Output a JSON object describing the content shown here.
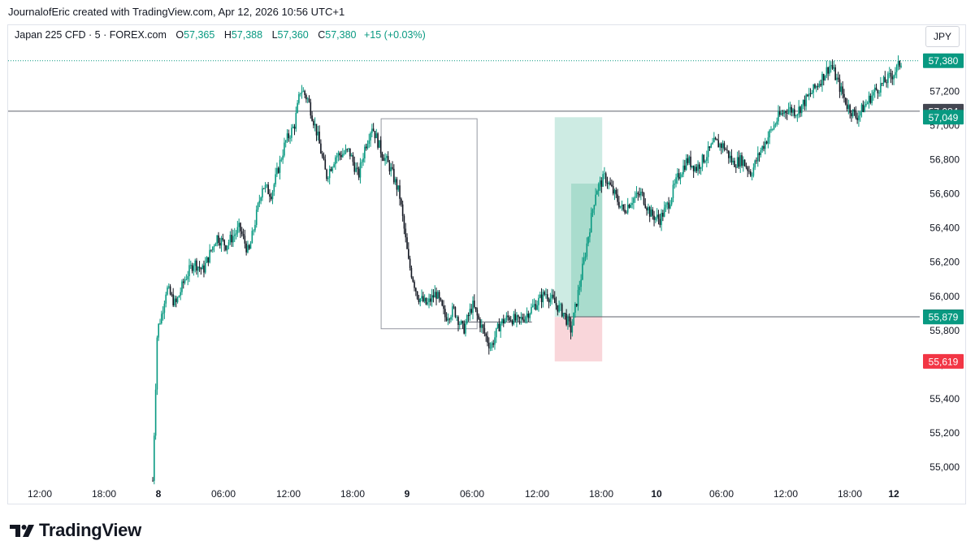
{
  "header": {
    "title": "JournalofEric created with TradingView.com, Apr 12, 2026 10:56 UTC+1"
  },
  "legend": {
    "symbol": "Japan 225 CFD · 5 · FOREX.com",
    "o_label": "O",
    "o": "57,365",
    "h_label": "H",
    "h": "57,388",
    "l_label": "L",
    "l": "57,360",
    "c_label": "C",
    "c": "57,380",
    "change": "+15 (+0.03%)"
  },
  "currency": "JPY",
  "brand": {
    "name": "TradingView",
    "icon": "tradingview-logo-icon"
  },
  "colors": {
    "up": "#089981",
    "down": "#131722",
    "stop": "#f23645",
    "target_zone": "#cdebe3",
    "stop_zone": "#f9d6da",
    "line": "#787b86"
  },
  "chart_data": {
    "type": "candlestick",
    "symbol": "Japan 225 CFD",
    "interval": "5",
    "ylim": [
      54900,
      57450
    ],
    "y_ticks": [
      55000,
      55200,
      55400,
      55600,
      55800,
      56000,
      56200,
      56400,
      56600,
      56800,
      57000,
      57200
    ],
    "y_tick_labels": [
      "55,000",
      "55,200",
      "55,400",
      "55,600",
      "55,800",
      "56,000",
      "56,200",
      "56,400",
      "56,600",
      "56,800",
      "57,000",
      "57,200"
    ],
    "x_ticks": [
      "12:00",
      "18:00",
      "8",
      "06:00",
      "12:00",
      "18:00",
      "9",
      "06:00",
      "12:00",
      "18:00",
      "10",
      "06:00",
      "12:00",
      "18:00",
      "12"
    ],
    "x_ticks_bold": [
      false,
      false,
      true,
      false,
      false,
      false,
      true,
      false,
      false,
      false,
      true,
      false,
      false,
      false,
      true
    ],
    "price_path": [
      [
        0.0,
        54920
      ],
      [
        0.5,
        55800
      ],
      [
        1.0,
        55900
      ],
      [
        1.5,
        56050
      ],
      [
        2.5,
        55950
      ],
      [
        3.5,
        56100
      ],
      [
        4.5,
        56200
      ],
      [
        5.5,
        56150
      ],
      [
        7.0,
        56350
      ],
      [
        8.0,
        56300
      ],
      [
        9.5,
        56400
      ],
      [
        10.5,
        56250
      ],
      [
        12.0,
        56650
      ],
      [
        13.0,
        56600
      ],
      [
        14.5,
        56900
      ],
      [
        15.5,
        57000
      ],
      [
        16.2,
        57220
      ],
      [
        17.0,
        57150
      ],
      [
        18.0,
        56950
      ],
      [
        19.0,
        56700
      ],
      [
        20.0,
        56820
      ],
      [
        21.5,
        56850
      ],
      [
        22.5,
        56700
      ],
      [
        23.2,
        56870
      ],
      [
        24.0,
        57000
      ],
      [
        25.0,
        56850
      ],
      [
        26.0,
        56750
      ],
      [
        27.0,
        56600
      ],
      [
        28.0,
        56200
      ],
      [
        29.0,
        56000
      ],
      [
        30.0,
        55950
      ],
      [
        31.0,
        56020
      ],
      [
        32.0,
        55880
      ],
      [
        33.0,
        55920
      ],
      [
        34.0,
        55800
      ],
      [
        35.0,
        55950
      ],
      [
        36.0,
        55820
      ],
      [
        37.0,
        55700
      ],
      [
        38.0,
        55840
      ],
      [
        39.0,
        55880
      ],
      [
        40.0,
        55850
      ],
      [
        41.0,
        55900
      ],
      [
        42.0,
        55960
      ],
      [
        43.0,
        56020
      ],
      [
        44.0,
        55960
      ],
      [
        45.0,
        55900
      ],
      [
        45.8,
        55800
      ],
      [
        46.5,
        56000
      ],
      [
        47.5,
        56300
      ],
      [
        48.5,
        56620
      ],
      [
        49.5,
        56700
      ],
      [
        50.5,
        56600
      ],
      [
        51.5,
        56500
      ],
      [
        52.5,
        56570
      ],
      [
        53.5,
        56600
      ],
      [
        54.5,
        56480
      ],
      [
        55.5,
        56450
      ],
      [
        56.5,
        56550
      ],
      [
        57.5,
        56700
      ],
      [
        58.5,
        56800
      ],
      [
        59.5,
        56750
      ],
      [
        60.5,
        56820
      ],
      [
        61.5,
        56900
      ],
      [
        62.5,
        56880
      ],
      [
        63.5,
        56780
      ],
      [
        64.5,
        56800
      ],
      [
        65.5,
        56720
      ],
      [
        66.5,
        56850
      ],
      [
        67.5,
        56950
      ],
      [
        68.5,
        57050
      ],
      [
        69.5,
        57100
      ],
      [
        70.5,
        57080
      ],
      [
        71.5,
        57150
      ],
      [
        72.5,
        57220
      ],
      [
        73.5,
        57300
      ],
      [
        74.2,
        57360
      ],
      [
        75.0,
        57250
      ],
      [
        76.0,
        57120
      ],
      [
        77.0,
        57050
      ],
      [
        78.0,
        57120
      ],
      [
        79.0,
        57200
      ],
      [
        80.0,
        57250
      ],
      [
        81.0,
        57300
      ],
      [
        82.0,
        57380
      ]
    ],
    "x_range": [
      0,
      82
    ],
    "horizontal_lines": [
      {
        "name": "resistance",
        "price": 57084,
        "label": "57,084",
        "from": 0,
        "to": 82
      },
      {
        "name": "entry",
        "price": 55880,
        "label": "55,880",
        "from": 45.2,
        "to": 82
      },
      {
        "name": "low-marker",
        "price": 55850,
        "from": 34.0,
        "to": 41.5
      }
    ],
    "rectangle": {
      "x_from": 25.0,
      "x_to": 35.5,
      "price_top": 57040,
      "price_bottom": 55810
    },
    "position": {
      "x_from": 44.0,
      "x_to": 49.2,
      "entry": 55879,
      "target": 57049,
      "stop": 55619,
      "mid_bar_top": 56660,
      "mid_bar_x": 45.8
    },
    "price_labels": [
      {
        "name": "last-price",
        "label": "57,380",
        "price": 57380,
        "color": "#089981"
      },
      {
        "name": "resistance",
        "label": "57,084",
        "price": 57084,
        "color": "#434651"
      },
      {
        "name": "target",
        "label": "57,049",
        "price": 57049,
        "color": "#089981"
      },
      {
        "name": "entry-line",
        "label": "55,880",
        "price": 55880,
        "color": "#434651"
      },
      {
        "name": "entry",
        "label": "55,879",
        "price": 55879,
        "color": "#089981"
      },
      {
        "name": "stop",
        "label": "55,619",
        "price": 55619,
        "color": "#f23645"
      }
    ]
  }
}
